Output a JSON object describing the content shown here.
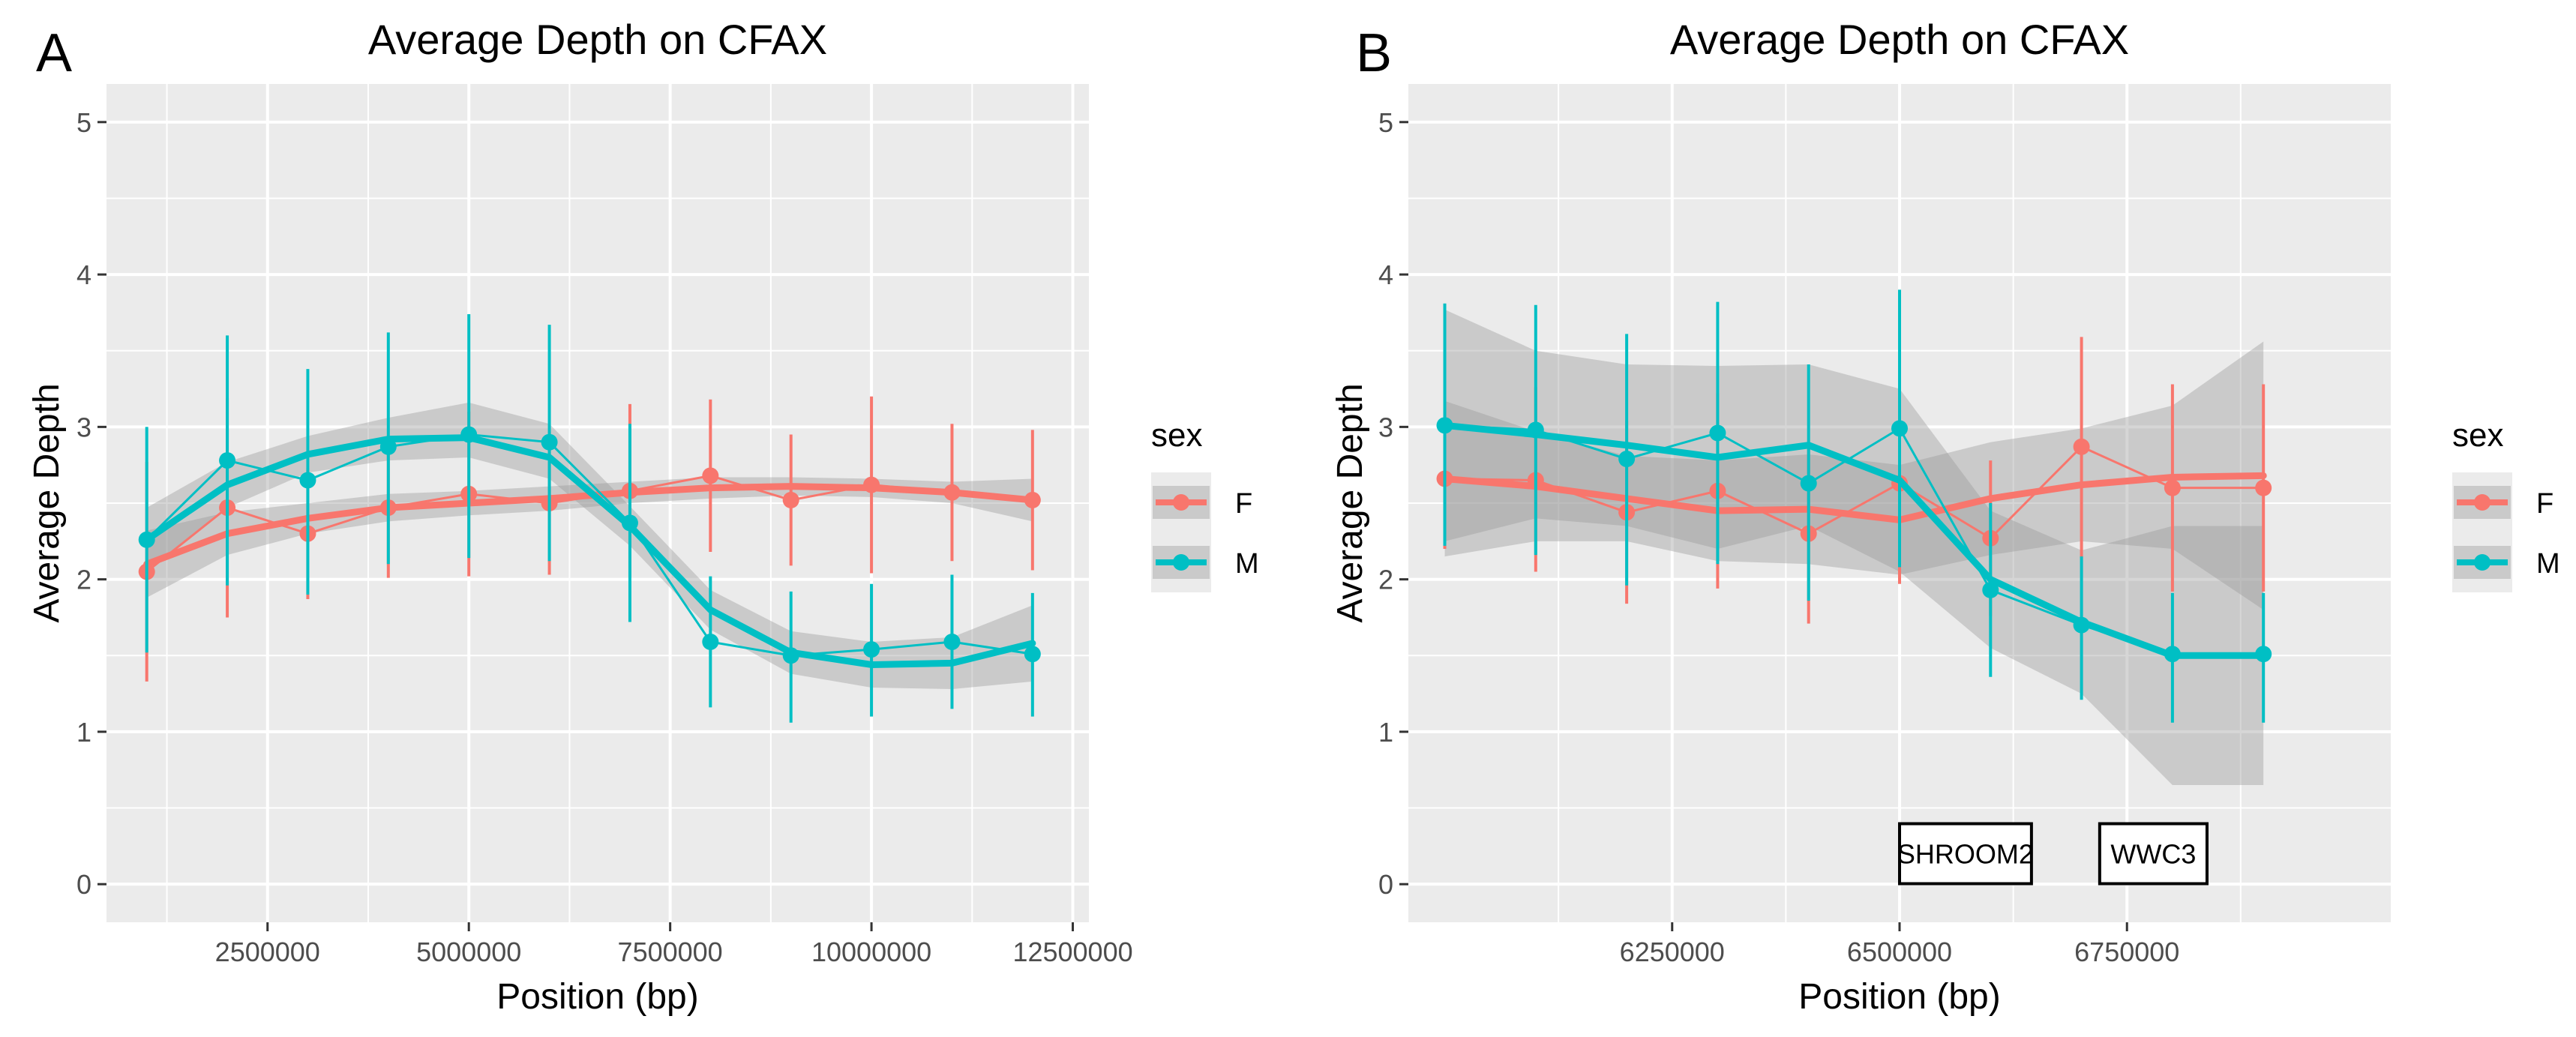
{
  "figure": {
    "panel_labels": [
      "A",
      "B"
    ]
  },
  "chart_data": [
    {
      "type": "line",
      "panel": "A",
      "title": "Average Depth on CFAX",
      "xlabel": "Position (bp)",
      "ylabel": "Average Depth",
      "xlim": [
        500000,
        12700000
      ],
      "ylim": [
        -0.25,
        5.25
      ],
      "x_ticks": [
        2500000,
        5000000,
        7500000,
        10000000,
        12500000
      ],
      "x_tick_labels": [
        "2500000",
        "5000000",
        "7500000",
        "10000000",
        "12500000"
      ],
      "y_ticks": [
        0,
        1,
        2,
        3,
        4,
        5
      ],
      "y_tick_labels": [
        "0",
        "1",
        "2",
        "3",
        "4",
        "5"
      ],
      "grid": true,
      "legend": {
        "title": "sex",
        "position": "right"
      },
      "series": [
        {
          "name": "F",
          "color": "#F8766D",
          "x": [
            1000000,
            2000000,
            3000000,
            4000000,
            5000000,
            6000000,
            7000000,
            8000000,
            9000000,
            10000000,
            11000000,
            12000000
          ],
          "y": [
            2.05,
            2.47,
            2.3,
            2.47,
            2.56,
            2.5,
            2.58,
            2.68,
            2.52,
            2.62,
            2.57,
            2.52
          ],
          "ymin": [
            1.33,
            1.75,
            1.87,
            2.01,
            2.02,
            2.03,
            2.01,
            2.18,
            2.09,
            2.04,
            2.12,
            2.06
          ],
          "ymax": [
            2.77,
            3.19,
            2.73,
            2.93,
            3.1,
            2.97,
            3.15,
            3.18,
            2.95,
            3.2,
            3.02,
            2.98
          ],
          "smooth": [
            2.1,
            2.3,
            2.4,
            2.47,
            2.5,
            2.53,
            2.57,
            2.6,
            2.61,
            2.6,
            2.57,
            2.52
          ],
          "smooth_lo": [
            1.88,
            2.16,
            2.3,
            2.38,
            2.42,
            2.45,
            2.5,
            2.53,
            2.55,
            2.54,
            2.5,
            2.38
          ],
          "smooth_hi": [
            2.32,
            2.44,
            2.5,
            2.56,
            2.58,
            2.61,
            2.64,
            2.67,
            2.67,
            2.66,
            2.64,
            2.66
          ]
        },
        {
          "name": "M",
          "color": "#00BFC4",
          "x": [
            1000000,
            2000000,
            3000000,
            4000000,
            5000000,
            6000000,
            7000000,
            8000000,
            9000000,
            10000000,
            11000000,
            12000000
          ],
          "y": [
            2.26,
            2.78,
            2.65,
            2.87,
            2.95,
            2.9,
            2.37,
            1.59,
            1.5,
            1.54,
            1.59,
            1.51
          ],
          "ymin": [
            1.52,
            1.96,
            1.9,
            2.1,
            2.14,
            2.12,
            1.72,
            1.16,
            1.06,
            1.1,
            1.15,
            1.1
          ],
          "ymax": [
            3.0,
            3.6,
            3.38,
            3.62,
            3.74,
            3.67,
            3.02,
            2.02,
            1.92,
            1.97,
            2.03,
            1.91
          ],
          "smooth": [
            2.26,
            2.62,
            2.82,
            2.92,
            2.93,
            2.8,
            2.35,
            1.8,
            1.52,
            1.44,
            1.45,
            1.58
          ],
          "smooth_lo": [
            2.05,
            2.47,
            2.7,
            2.78,
            2.8,
            2.66,
            2.22,
            1.67,
            1.38,
            1.29,
            1.28,
            1.33
          ],
          "smooth_hi": [
            2.47,
            2.77,
            2.94,
            3.06,
            3.16,
            3.02,
            2.48,
            1.93,
            1.66,
            1.59,
            1.62,
            1.83
          ]
        }
      ]
    },
    {
      "type": "line",
      "panel": "B",
      "title": "Average Depth on CFAX",
      "xlabel": "Position (bp)",
      "ylabel": "Average Depth",
      "xlim": [
        5960000,
        7040000
      ],
      "ylim": [
        -0.25,
        5.25
      ],
      "x_ticks": [
        6250000,
        6500000,
        6750000
      ],
      "x_tick_labels": [
        "6250000",
        "6500000",
        "6750000"
      ],
      "y_ticks": [
        0,
        1,
        2,
        3,
        4,
        5
      ],
      "y_tick_labels": [
        "0",
        "1",
        "2",
        "3",
        "4",
        "5"
      ],
      "grid": true,
      "legend": {
        "title": "sex",
        "position": "right"
      },
      "annotations": [
        {
          "label": "SHROOM2",
          "x_start": 6500000,
          "x_end": 6645000,
          "y": 0.2
        },
        {
          "label": "WWC3",
          "x_start": 6720000,
          "x_end": 6838000,
          "y": 0.2
        }
      ],
      "series": [
        {
          "name": "F",
          "color": "#F8766D",
          "x": [
            6000000,
            6100000,
            6200000,
            6300000,
            6400000,
            6500000,
            6600000,
            6700000,
            6800000,
            6900000
          ],
          "y": [
            2.66,
            2.65,
            2.44,
            2.58,
            2.3,
            2.63,
            2.27,
            2.87,
            2.6,
            2.6
          ],
          "ymin": [
            2.2,
            2.05,
            1.84,
            1.94,
            1.71,
            1.97,
            1.76,
            2.14,
            1.92,
            1.92
          ],
          "ymax": [
            3.12,
            3.26,
            3.04,
            3.22,
            2.89,
            3.29,
            2.78,
            3.59,
            3.28,
            3.28
          ],
          "smooth": [
            2.66,
            2.61,
            2.53,
            2.45,
            2.46,
            2.39,
            2.53,
            2.62,
            2.67,
            2.68
          ],
          "smooth_lo": [
            2.15,
            2.25,
            2.25,
            2.12,
            2.1,
            2.03,
            2.16,
            2.25,
            2.2,
            1.8
          ],
          "smooth_hi": [
            3.17,
            2.97,
            2.81,
            2.78,
            2.82,
            2.75,
            2.9,
            2.99,
            3.14,
            3.56
          ]
        },
        {
          "name": "M",
          "color": "#00BFC4",
          "x": [
            6000000,
            6100000,
            6200000,
            6300000,
            6400000,
            6500000,
            6600000,
            6700000,
            6800000,
            6900000
          ],
          "y": [
            3.01,
            2.98,
            2.79,
            2.96,
            2.63,
            2.99,
            1.93,
            1.7,
            1.51,
            1.51
          ],
          "ymin": [
            2.22,
            2.16,
            1.96,
            2.1,
            1.86,
            2.08,
            1.36,
            1.21,
            1.06,
            1.06
          ],
          "ymax": [
            3.81,
            3.8,
            3.61,
            3.82,
            3.41,
            3.9,
            2.5,
            2.15,
            1.91,
            1.91
          ],
          "smooth": [
            3.01,
            2.95,
            2.88,
            2.8,
            2.88,
            2.65,
            2.0,
            1.72,
            1.5,
            1.5
          ],
          "smooth_lo": [
            2.25,
            2.4,
            2.35,
            2.2,
            2.35,
            2.05,
            1.55,
            1.25,
            0.65,
            0.65
          ],
          "smooth_hi": [
            3.77,
            3.5,
            3.41,
            3.4,
            3.41,
            3.25,
            2.45,
            2.19,
            2.35,
            2.35
          ]
        }
      ]
    }
  ]
}
